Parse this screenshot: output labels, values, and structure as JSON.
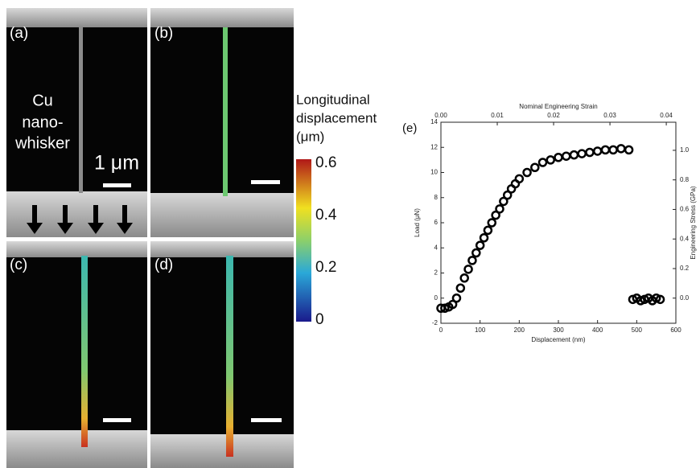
{
  "figure": {
    "panels": [
      {
        "label": "(a)",
        "annotation_lines": [
          "Cu",
          "nano-",
          "whisker"
        ],
        "scale_text": "1 μm"
      },
      {
        "label": "(b)"
      },
      {
        "label": "(c)"
      },
      {
        "label": "(d)"
      }
    ],
    "colorbar": {
      "title_lines": [
        "Longitudinal",
        "displacement",
        "(μm)"
      ],
      "range": [
        0,
        0.6
      ],
      "ticks": [
        0.6,
        0.4,
        0.2,
        0
      ]
    },
    "chart_label": "(e)"
  },
  "chart_data": {
    "type": "scatter",
    "x_label": "Displacement (nm)",
    "y_label": "Load (μN)",
    "x2_label": "Nominal Engineering Strain",
    "y2_label": "Engineering Stress (GPa)",
    "xlim": [
      0,
      600
    ],
    "xticks": [
      0,
      100,
      200,
      300,
      400,
      500,
      600
    ],
    "ylim": [
      -2,
      14
    ],
    "yticks": [
      -2,
      0,
      2,
      4,
      6,
      8,
      10,
      12,
      14
    ],
    "x2lim": [
      0,
      0.0417
    ],
    "x2ticks": [
      {
        "value": 0,
        "label": "0.00"
      },
      0.01,
      0.02,
      0.03,
      0.04
    ],
    "y2lim": [
      -0.17,
      1.19
    ],
    "y2ticks": [
      {
        "value": 0,
        "label": "0.0"
      },
      0.2,
      0.4,
      0.6,
      0.8,
      {
        "value": 1,
        "label": "1.0"
      }
    ],
    "series": [
      {
        "color": "#000000",
        "x": [
          0,
          10,
          20,
          30,
          40,
          50,
          60,
          70,
          80,
          90,
          100,
          110,
          120,
          130,
          140,
          150,
          160,
          170,
          180,
          190,
          200,
          220,
          240,
          260,
          280,
          300,
          320,
          340,
          360,
          380,
          400,
          420,
          440,
          460,
          480,
          490,
          500,
          510,
          520,
          530,
          540,
          550,
          560
        ],
        "y": [
          -0.8,
          -0.8,
          -0.7,
          -0.5,
          0,
          0.8,
          1.6,
          2.3,
          3,
          3.6,
          4.2,
          4.8,
          5.4,
          6,
          6.6,
          7.1,
          7.7,
          8.2,
          8.7,
          9.1,
          9.5,
          10,
          10.4,
          10.8,
          11,
          11.2,
          11.3,
          11.4,
          11.5,
          11.6,
          11.7,
          11.8,
          11.8,
          11.9,
          11.8,
          -0.1,
          0,
          -0.2,
          -0.1,
          0,
          -0.2,
          0,
          -0.1
        ]
      }
    ]
  }
}
